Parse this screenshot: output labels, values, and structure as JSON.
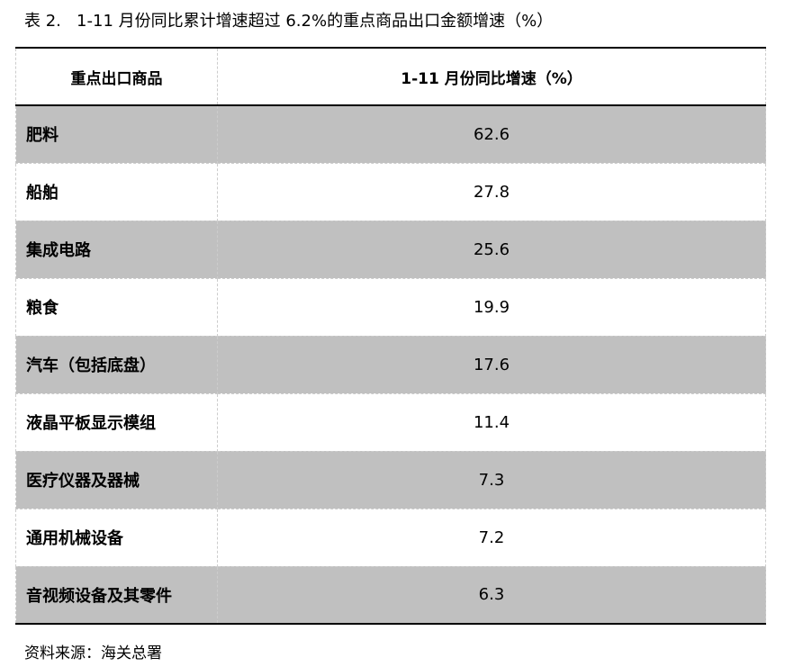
{
  "title": "表 2.   1-11 月份同比累计增速超过 6.2%的重点商品出口金额增速（%）",
  "table": {
    "headers": [
      "重点出口商品",
      "1-11 月份同比增速（%）"
    ],
    "rows": [
      {
        "name": "肥料",
        "value": "62.6"
      },
      {
        "name": "船舶",
        "value": "27.8"
      },
      {
        "name": "集成电路",
        "value": "25.6"
      },
      {
        "name": "粮食",
        "value": "19.9"
      },
      {
        "name": "汽车（包括底盘）",
        "value": "17.6"
      },
      {
        "name": "液晶平板显示模组",
        "value": "11.4"
      },
      {
        "name": "医疗仪器及器械",
        "value": "7.3"
      },
      {
        "name": "通用机械设备",
        "value": "7.2"
      },
      {
        "name": "音视频设备及其零件",
        "value": "6.3"
      }
    ]
  },
  "source": "资料来源：海关总署",
  "colors": {
    "shade": "#c0c0c0"
  }
}
